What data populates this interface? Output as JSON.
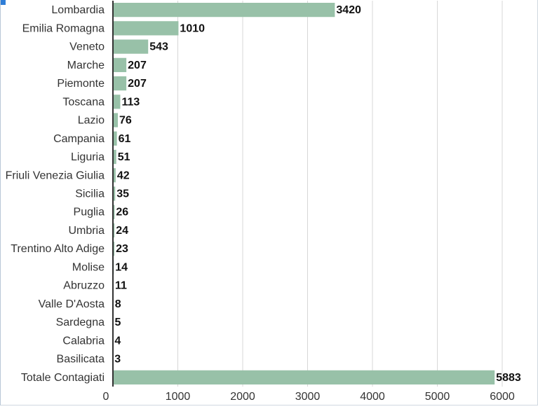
{
  "chart_data": {
    "type": "bar",
    "orientation": "horizontal",
    "categories": [
      "Lombardia",
      "Emilia Romagna",
      "Veneto",
      "Marche",
      "Piemonte",
      "Toscana",
      "Lazio",
      "Campania",
      "Liguria",
      "Friuli Venezia Giulia",
      "Sicilia",
      "Puglia",
      "Umbria",
      "Trentino Alto Adige",
      "Molise",
      "Abruzzo",
      "Valle D'Aosta",
      "Sardegna",
      "Calabria",
      "Basilicata",
      "Totale Contagiati"
    ],
    "values": [
      3420,
      1010,
      543,
      207,
      207,
      113,
      76,
      61,
      51,
      42,
      35,
      26,
      24,
      23,
      14,
      11,
      8,
      5,
      4,
      3,
      5883
    ],
    "data_labels": [
      "3420",
      "1010",
      "543",
      "207",
      "207",
      "113",
      "76",
      "61",
      "51",
      "42",
      "35",
      "26",
      "24",
      "23",
      "14",
      "11",
      "8",
      "5",
      "4",
      "3",
      "5883"
    ],
    "xticks": [
      0,
      1000,
      2000,
      3000,
      4000,
      5000,
      6000
    ],
    "xtick_labels": [
      "0",
      "1000",
      "2000",
      "3000",
      "4000",
      "5000",
      "6000"
    ],
    "xlim": [
      0,
      6400
    ],
    "grid": "vertical",
    "legend": "none",
    "title": "",
    "xlabel": "",
    "ylabel": "",
    "colors": {
      "bar": "#98c1a8",
      "grid": "#d7d7d7",
      "axis": "#333333",
      "label_text": "#333333",
      "value_text": "#111111"
    }
  }
}
